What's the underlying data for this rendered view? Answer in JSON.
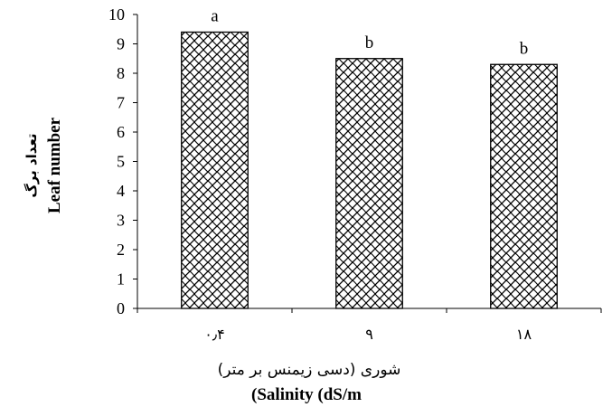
{
  "chart_data": {
    "type": "bar",
    "categories": [
      "۰٫۴",
      "۹",
      "۱۸"
    ],
    "values": [
      9.4,
      8.5,
      8.3
    ],
    "significance_letters": [
      "a",
      "b",
      "b"
    ],
    "ylim": [
      0,
      10
    ],
    "yticks": [
      "0",
      "1",
      "2",
      "3",
      "4",
      "5",
      "6",
      "7",
      "8",
      "9",
      "10"
    ],
    "ylabel": {
      "fa": "تعداد برگ",
      "en": "Leaf number"
    },
    "xlabel": {
      "fa": "شوری (دسی زیمنس بر متر)",
      "en": "(Salinity (dS/m"
    },
    "bar_fill_pattern": "crosshatch-wave",
    "bar_color": "#000000",
    "grid": false,
    "legend": "none"
  }
}
